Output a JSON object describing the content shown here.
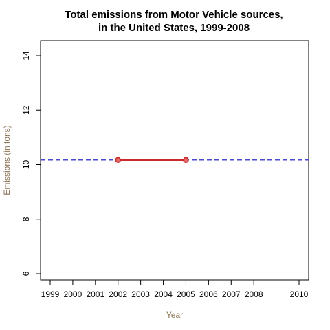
{
  "chart_data": {
    "type": "line",
    "title_lines": [
      "Total emissions from Motor Vehicle sources,",
      "in the United States, 1999-2008"
    ],
    "xlabel": "Year",
    "ylabel": "Emissions (in tons)",
    "xlim": [
      1999,
      2010
    ],
    "ylim": [
      6,
      14
    ],
    "x_ticks": [
      1999,
      2000,
      2001,
      2002,
      2003,
      2004,
      2005,
      2006,
      2007,
      2008,
      2010
    ],
    "y_ticks": [
      6,
      8,
      10,
      12,
      14
    ],
    "series": [
      {
        "x": [
          2002,
          2005
        ],
        "values": [
          10.17,
          10.17
        ],
        "color": "#cc2a2a",
        "marker_fill": "#e06666"
      }
    ],
    "reference_line": {
      "y": 10.17,
      "style": "dashed",
      "color": "#4a4ad0"
    },
    "grid": false,
    "legend": "none"
  }
}
